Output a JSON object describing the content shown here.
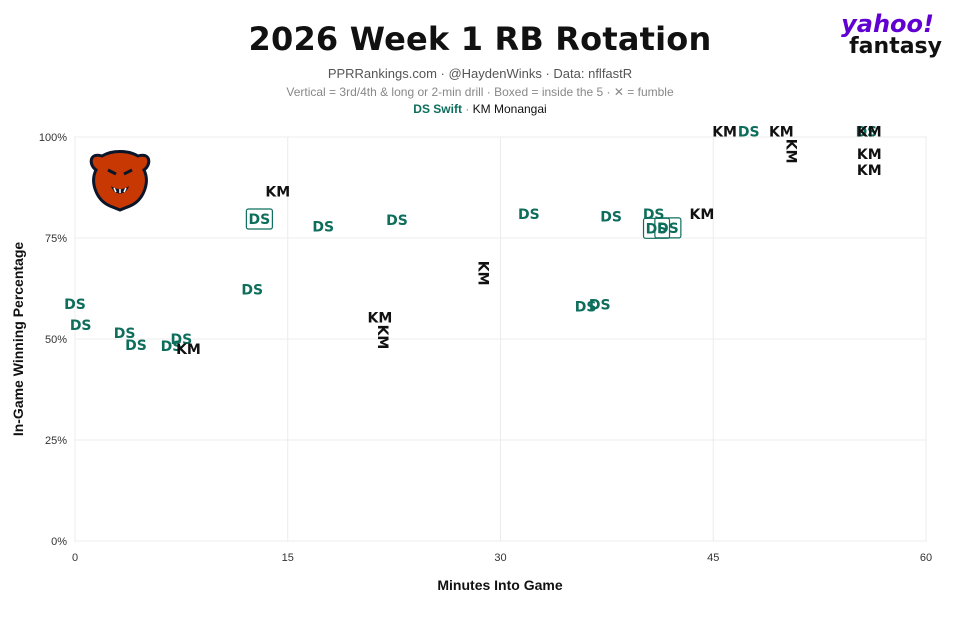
{
  "header": {
    "title": "2026 Week 1 RB Rotation",
    "subtitle": "PPRRankings.com · @HaydenWinks · Data: nflfastR",
    "note": "Vertical = 3rd/4th & long or 2-min drill · Boxed = inside the 5 · ✕ = fumble",
    "legend_ds": "DS Swift",
    "legend_sep": "·",
    "legend_km": "KM Monangai"
  },
  "brand": {
    "word1": "yahoo!",
    "word2": "fantasy",
    "color": "#6001d2"
  },
  "team_logo": {
    "icon": "chicago-bears-logo-icon"
  },
  "colors": {
    "ds": "#0d6e5c",
    "km": "#111111"
  },
  "chart_data": {
    "type": "scatter",
    "title": "2026 Week 1 RB Rotation",
    "xlabel": "Minutes Into Game",
    "ylabel": "In-Game Winning Percentage",
    "xlim": [
      0,
      60
    ],
    "ylim": [
      0,
      100
    ],
    "xticks": [
      "0",
      "15",
      "30",
      "45",
      "60"
    ],
    "yticks": [
      "0%",
      "25%",
      "50%",
      "75%",
      "100%"
    ],
    "grid": true,
    "series": [
      {
        "name": "DS Swift",
        "marker_text": "DS",
        "points": [
          {
            "x": 0.0,
            "y": 58.7
          },
          {
            "x": 0.4,
            "y": 53.5
          },
          {
            "x": 3.5,
            "y": 51.5
          },
          {
            "x": 4.3,
            "y": 48.5
          },
          {
            "x": 6.8,
            "y": 48.3
          },
          {
            "x": 7.5,
            "y": 50.0
          },
          {
            "x": 12.5,
            "y": 62.3
          },
          {
            "x": 13.0,
            "y": 79.7,
            "boxed": true
          },
          {
            "x": 17.5,
            "y": 77.8
          },
          {
            "x": 22.7,
            "y": 79.5
          },
          {
            "x": 32.0,
            "y": 81.0
          },
          {
            "x": 36.0,
            "y": 58.0
          },
          {
            "x": 37.0,
            "y": 58.5
          },
          {
            "x": 37.8,
            "y": 80.3
          },
          {
            "x": 40.8,
            "y": 81.0
          },
          {
            "x": 41.0,
            "y": 77.4,
            "boxed": true
          },
          {
            "x": 41.8,
            "y": 77.5,
            "boxed": true
          },
          {
            "x": 47.5,
            "y": 101.3
          },
          {
            "x": 55.8,
            "y": 101.3
          }
        ]
      },
      {
        "name": "KM Monangai",
        "marker_text": "KM",
        "points": [
          {
            "x": 8.0,
            "y": 47.5
          },
          {
            "x": 14.3,
            "y": 86.5
          },
          {
            "x": 21.5,
            "y": 55.3
          },
          {
            "x": 21.7,
            "y": 50.5,
            "vertical": true
          },
          {
            "x": 28.8,
            "y": 66.3,
            "vertical": true
          },
          {
            "x": 44.2,
            "y": 81.0
          },
          {
            "x": 45.8,
            "y": 101.3
          },
          {
            "x": 49.8,
            "y": 101.3
          },
          {
            "x": 50.5,
            "y": 96.5,
            "vertical": true
          },
          {
            "x": 56.0,
            "y": 101.3
          },
          {
            "x": 56.0,
            "y": 95.8
          },
          {
            "x": 56.0,
            "y": 91.8
          }
        ]
      }
    ]
  }
}
